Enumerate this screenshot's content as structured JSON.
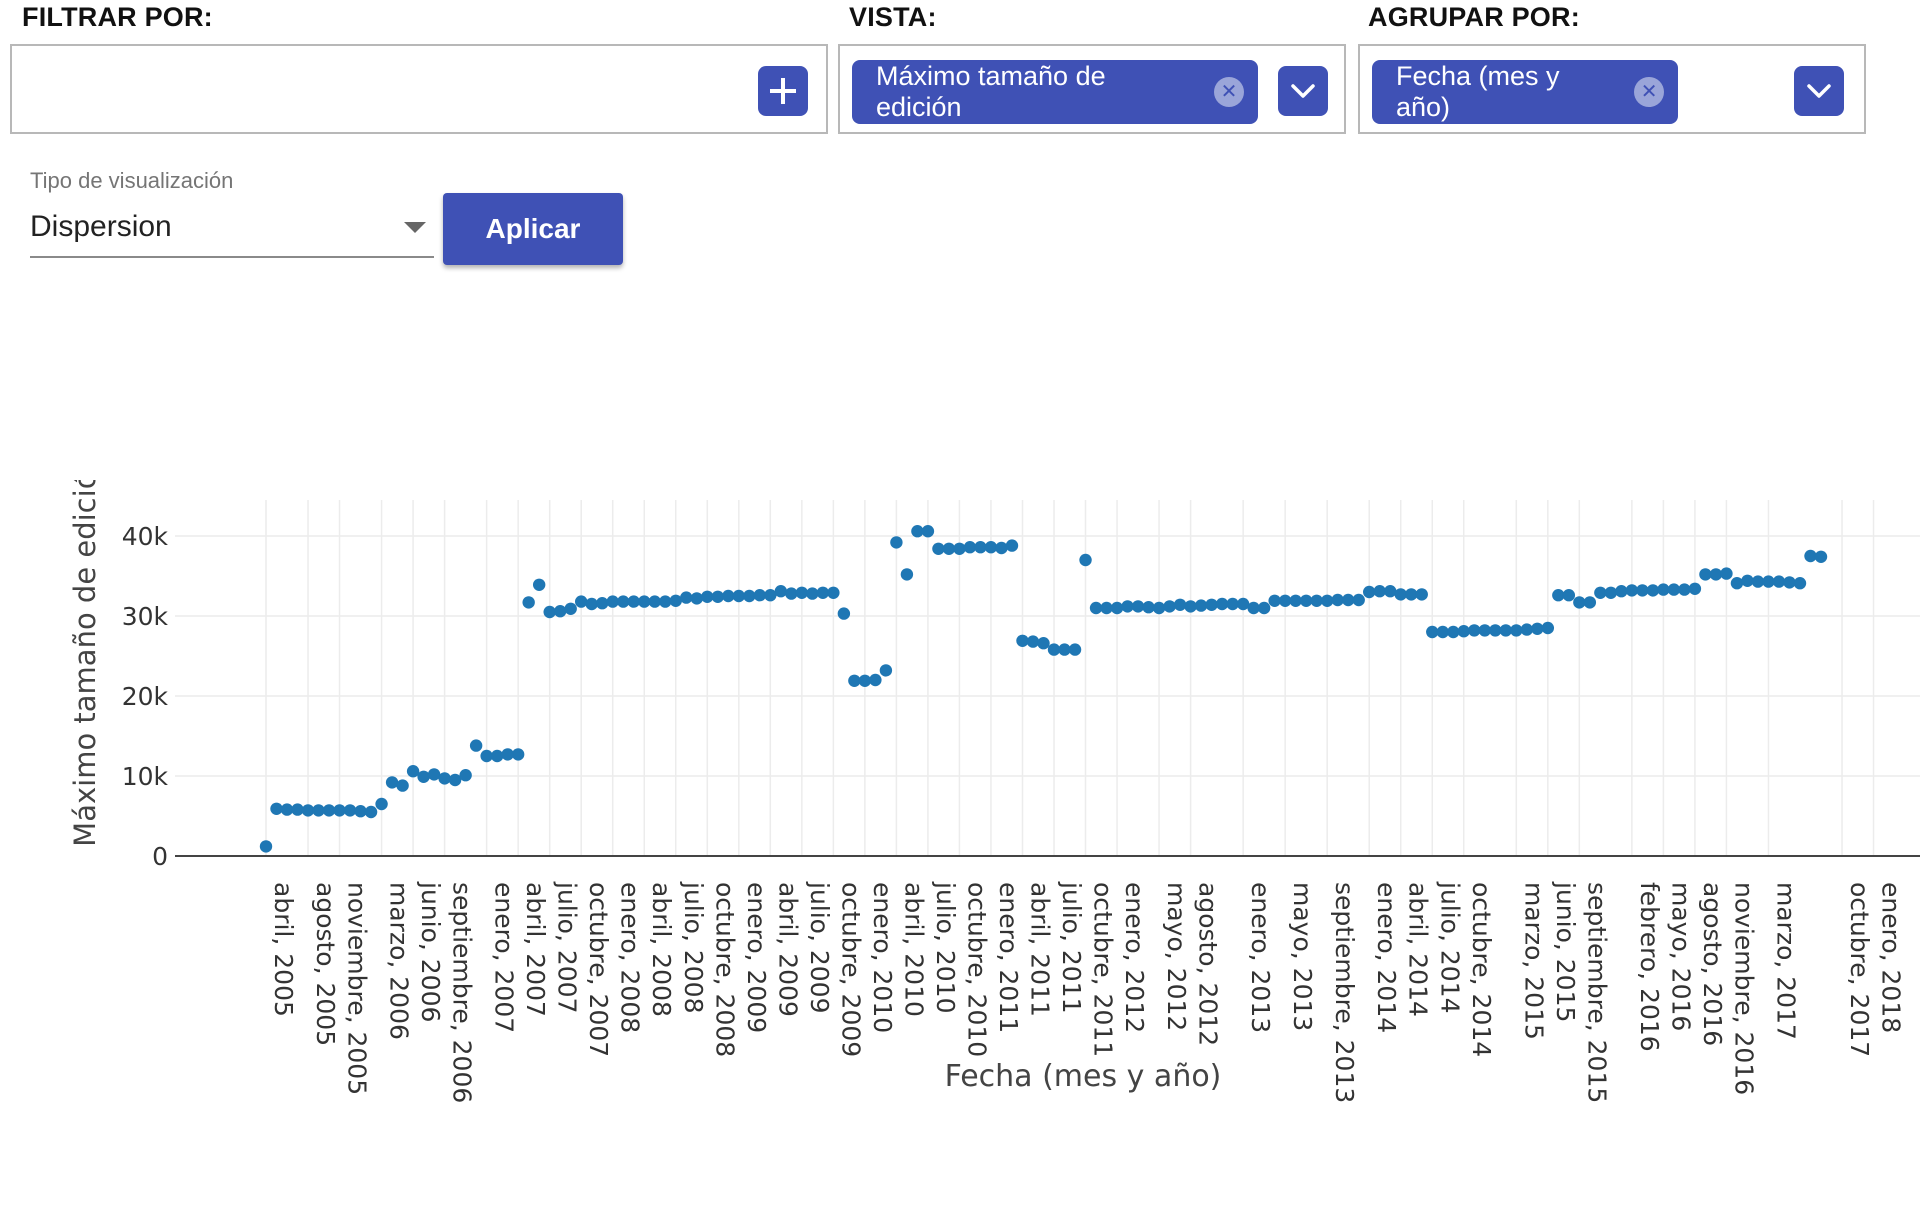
{
  "filters": {
    "filter_label": "FILTRAR POR:",
    "view_label": "VISTA:",
    "group_label": "AGRUPAR POR:",
    "view_chip": "Máximo tamaño de edición",
    "group_chip": "Fecha (mes y año)"
  },
  "visualization": {
    "label": "Tipo de visualización",
    "selected": "Dispersion",
    "apply_label": "Aplicar"
  },
  "colors": {
    "accent": "#3f51b5",
    "marker": "#1f77b4"
  },
  "icons": {
    "add": "plus-icon",
    "remove": "close-circle-icon",
    "expand": "chevron-down-icon"
  },
  "chart_data": {
    "type": "scatter",
    "xlabel": "Fecha (mes y año)",
    "ylabel": "Máximo tamaño de edición",
    "ylim": [
      0,
      43000
    ],
    "yticks": [
      0,
      10000,
      20000,
      30000,
      40000
    ],
    "ytick_labels": [
      "0",
      "10k",
      "20k",
      "30k",
      "40k"
    ],
    "grid": true,
    "x_start": "abril, 2005",
    "x_tick_labels": [
      "abril, 2005",
      "agosto, 2005",
      "noviembre, 2005",
      "marzo, 2006",
      "junio, 2006",
      "septiembre, 2006",
      "enero, 2007",
      "abril, 2007",
      "julio, 2007",
      "octubre, 2007",
      "enero, 2008",
      "abril, 2008",
      "julio, 2008",
      "octubre, 2008",
      "enero, 2009",
      "abril, 2009",
      "julio, 2009",
      "octubre, 2009",
      "enero, 2010",
      "abril, 2010",
      "julio, 2010",
      "octubre, 2010",
      "enero, 2011",
      "abril, 2011",
      "julio, 2011",
      "octubre, 2011",
      "enero, 2012",
      "mayo, 2012",
      "agosto, 2012",
      "enero, 2013",
      "mayo, 2013",
      "septiembre, 2013",
      "enero, 2014",
      "abril, 2014",
      "julio, 2014",
      "octubre, 2014",
      "marzo, 2015",
      "junio, 2015",
      "septiembre, 2015",
      "febrero, 2016",
      "mayo, 2016",
      "agosto, 2016",
      "noviembre, 2016",
      "marzo, 2017",
      "octubre, 2017",
      "enero, 2018"
    ],
    "x_tick_positions": [
      0,
      4,
      7,
      11,
      14,
      17,
      21,
      24,
      27,
      30,
      33,
      36,
      39,
      42,
      45,
      48,
      51,
      54,
      57,
      60,
      63,
      66,
      69,
      72,
      75,
      78,
      81,
      85,
      88,
      93,
      97,
      101,
      105,
      108,
      111,
      114,
      119,
      122,
      125,
      130,
      133,
      136,
      139,
      143,
      150,
      153
    ],
    "series": [
      {
        "values": [
          1200,
          5900,
          5800,
          5800,
          5700,
          5700,
          5700,
          5700,
          5700,
          5600,
          5500,
          6500,
          9200,
          8800,
          10600,
          9900,
          10200,
          9700,
          9500,
          10100,
          13800,
          12500,
          12500,
          12700,
          12700,
          31700,
          33900,
          30500,
          30600,
          30900,
          31800,
          31500,
          31600,
          31800,
          31800,
          31800,
          31800,
          31800,
          31800,
          31900,
          32300,
          32200,
          32400,
          32400,
          32500,
          32500,
          32500,
          32600,
          32600,
          33100,
          32800,
          32900,
          32800,
          32900,
          32900,
          30300,
          21900,
          21900,
          22000,
          23200,
          39200,
          35200,
          40600,
          40600,
          38400,
          38400,
          38400,
          38600,
          38600,
          38600,
          38500,
          38800,
          26900,
          26800,
          26600,
          25800,
          25800,
          25800,
          37000,
          31000,
          31000,
          31000,
          31200,
          31200,
          31100,
          31000,
          31200,
          31400,
          31200,
          31300,
          31400,
          31500,
          31500,
          31500,
          31000,
          31000,
          31900,
          31900,
          31900,
          31900,
          31900,
          31900,
          32000,
          32000,
          32000,
          33000,
          33100,
          33100,
          32700,
          32700,
          32700,
          28000,
          28000,
          28000,
          28100,
          28200,
          28200,
          28200,
          28200,
          28200,
          28300,
          28400,
          28500,
          32600,
          32600,
          31700,
          31700,
          32900,
          32900,
          33100,
          33200,
          33200,
          33200,
          33300,
          33300,
          33300,
          33400,
          35200,
          35200,
          35300,
          34100,
          34400,
          34300,
          34300,
          34300,
          34200,
          34100,
          37500,
          37400
        ]
      }
    ]
  }
}
